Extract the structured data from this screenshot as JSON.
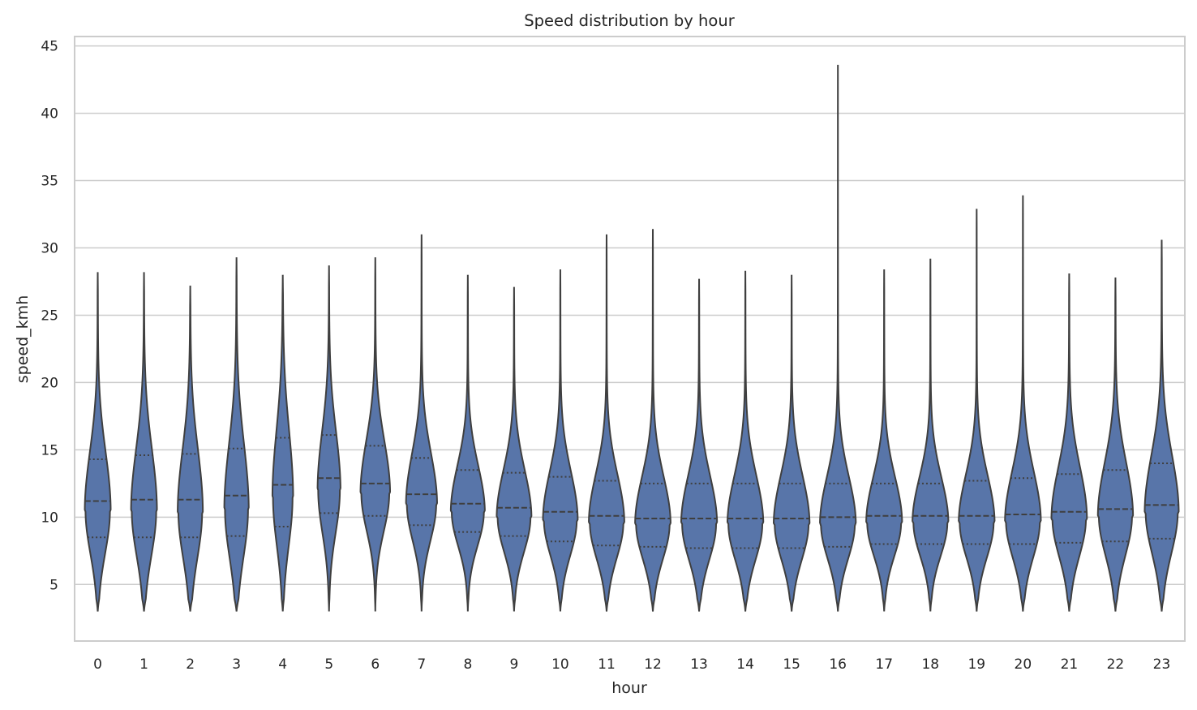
{
  "chart_data": {
    "type": "violin",
    "title": "Speed distribution by hour",
    "xlabel": "hour",
    "ylabel": "speed_kmh",
    "ylim": [
      0.8,
      45.7
    ],
    "yticks": [
      5,
      10,
      15,
      20,
      25,
      30,
      35,
      40,
      45
    ],
    "categories": [
      "0",
      "1",
      "2",
      "3",
      "4",
      "5",
      "6",
      "7",
      "8",
      "9",
      "10",
      "11",
      "12",
      "13",
      "14",
      "15",
      "16",
      "17",
      "18",
      "19",
      "20",
      "21",
      "22",
      "23"
    ],
    "grid": "horizontal",
    "colors": {
      "fill": "#5875a9",
      "edge": "#3f3f3f",
      "grid": "#cccccc",
      "spine": "#cccccc"
    },
    "series": [
      {
        "min": 3,
        "max": 28.2,
        "q1": 8.5,
        "median": 11.2,
        "q3": 14.3,
        "mode": 10.5,
        "width": 0.7
      },
      {
        "min": 3,
        "max": 28.2,
        "q1": 8.5,
        "median": 11.3,
        "q3": 14.6,
        "mode": 10.5,
        "width": 0.7
      },
      {
        "min": 3,
        "max": 27.2,
        "q1": 8.5,
        "median": 11.3,
        "q3": 14.7,
        "mode": 10.4,
        "width": 0.68
      },
      {
        "min": 3,
        "max": 29.3,
        "q1": 8.6,
        "median": 11.6,
        "q3": 15.1,
        "mode": 10.6,
        "width": 0.66
      },
      {
        "min": 3,
        "max": 28.0,
        "q1": 9.3,
        "median": 12.4,
        "q3": 15.9,
        "mode": 11.5,
        "width": 0.56
      },
      {
        "min": 3,
        "max": 28.7,
        "q1": 10.3,
        "median": 12.9,
        "q3": 16.1,
        "mode": 12.0,
        "width": 0.62
      },
      {
        "min": 3,
        "max": 29.3,
        "q1": 10.1,
        "median": 12.5,
        "q3": 15.3,
        "mode": 11.8,
        "width": 0.8
      },
      {
        "min": 3,
        "max": 31.0,
        "q1": 9.4,
        "median": 11.7,
        "q3": 14.4,
        "mode": 11.0,
        "width": 0.84
      },
      {
        "min": 3,
        "max": 28.0,
        "q1": 8.9,
        "median": 11.0,
        "q3": 13.5,
        "mode": 10.4,
        "width": 0.92
      },
      {
        "min": 3,
        "max": 27.1,
        "q1": 8.6,
        "median": 10.7,
        "q3": 13.3,
        "mode": 10.0,
        "width": 0.94
      },
      {
        "min": 3,
        "max": 28.4,
        "q1": 8.2,
        "median": 10.4,
        "q3": 13.0,
        "mode": 9.8,
        "width": 0.94
      },
      {
        "min": 3,
        "max": 31.0,
        "q1": 7.9,
        "median": 10.1,
        "q3": 12.7,
        "mode": 9.6,
        "width": 0.96
      },
      {
        "min": 3,
        "max": 31.4,
        "q1": 7.8,
        "median": 9.9,
        "q3": 12.5,
        "mode": 9.5,
        "width": 0.96
      },
      {
        "min": 3,
        "max": 27.7,
        "q1": 7.7,
        "median": 9.9,
        "q3": 12.5,
        "mode": 9.5,
        "width": 0.97
      },
      {
        "min": 3,
        "max": 28.3,
        "q1": 7.7,
        "median": 9.9,
        "q3": 12.5,
        "mode": 9.5,
        "width": 0.97
      },
      {
        "min": 3,
        "max": 28.0,
        "q1": 7.7,
        "median": 9.9,
        "q3": 12.5,
        "mode": 9.5,
        "width": 0.97
      },
      {
        "min": 3,
        "max": 43.6,
        "q1": 7.8,
        "median": 10.0,
        "q3": 12.5,
        "mode": 9.5,
        "width": 0.97
      },
      {
        "min": 3,
        "max": 28.4,
        "q1": 8.0,
        "median": 10.1,
        "q3": 12.5,
        "mode": 9.6,
        "width": 0.97
      },
      {
        "min": 3,
        "max": 29.2,
        "q1": 8.0,
        "median": 10.1,
        "q3": 12.5,
        "mode": 9.6,
        "width": 0.97
      },
      {
        "min": 3,
        "max": 32.9,
        "q1": 8.0,
        "median": 10.1,
        "q3": 12.7,
        "mode": 9.6,
        "width": 0.97
      },
      {
        "min": 3,
        "max": 33.9,
        "q1": 8.0,
        "median": 10.2,
        "q3": 12.9,
        "mode": 9.7,
        "width": 0.97
      },
      {
        "min": 3,
        "max": 28.1,
        "q1": 8.1,
        "median": 10.4,
        "q3": 13.2,
        "mode": 9.9,
        "width": 0.96
      },
      {
        "min": 3,
        "max": 27.8,
        "q1": 8.2,
        "median": 10.6,
        "q3": 13.5,
        "mode": 10.1,
        "width": 0.95
      },
      {
        "min": 3,
        "max": 30.6,
        "q1": 8.4,
        "median": 10.9,
        "q3": 14.0,
        "mode": 10.4,
        "width": 0.92
      }
    ]
  }
}
